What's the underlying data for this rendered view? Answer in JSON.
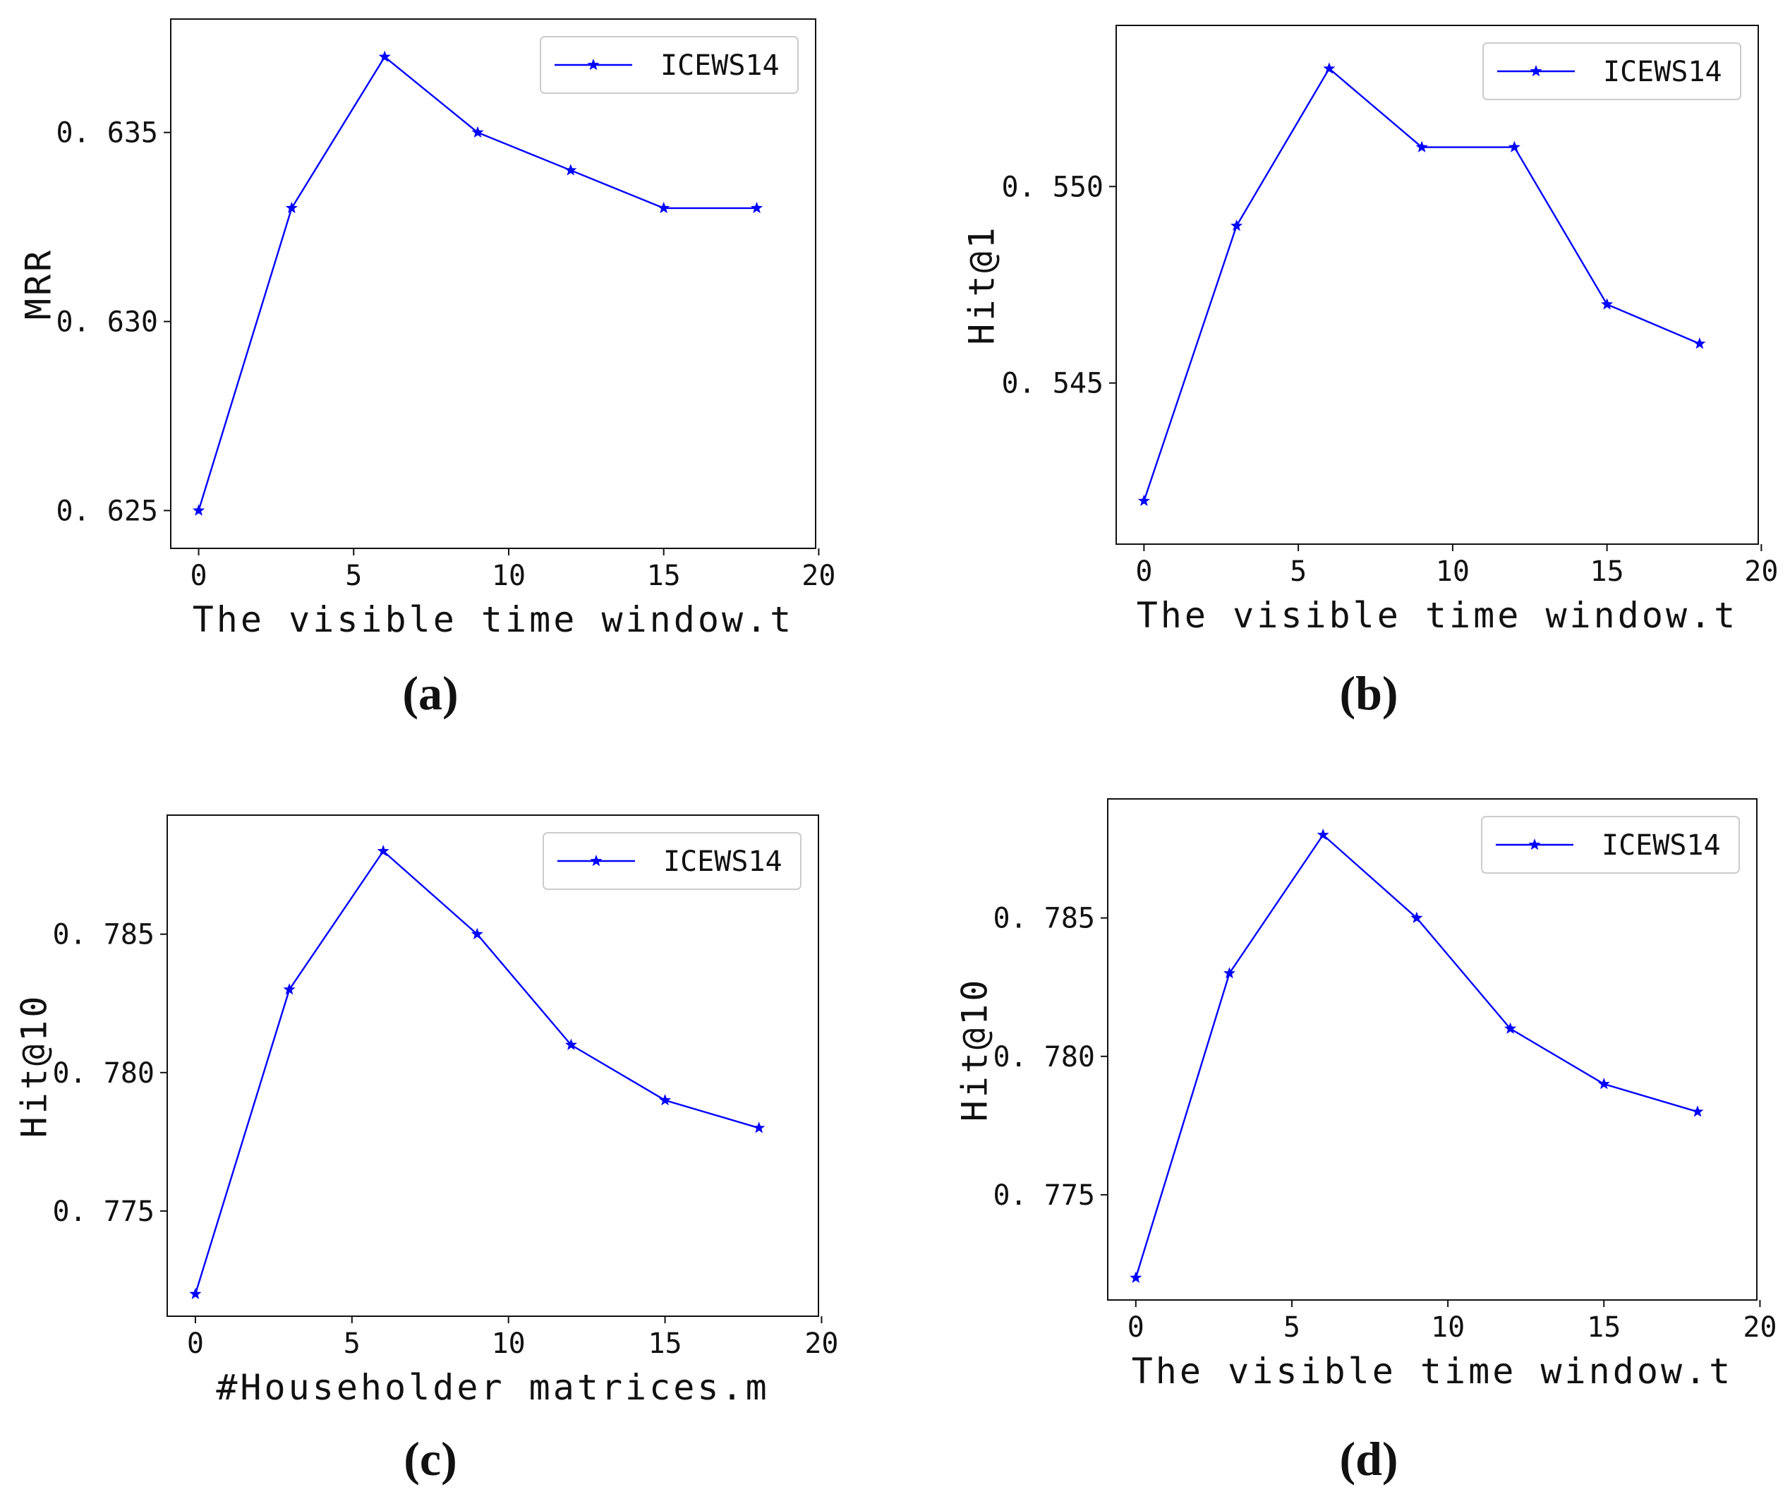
{
  "chart_data": [
    {
      "type": "line",
      "panel_label": "(a)",
      "xlabel": "The visible time window.t",
      "ylabel": "MRR",
      "xlim": [
        -0.9,
        19.9
      ],
      "ylim": [
        0.624,
        0.638
      ],
      "xticks": [
        0,
        5,
        10,
        15,
        20
      ],
      "yticks": [
        0.625,
        0.63,
        0.635
      ],
      "ytick_labels": [
        "0. 625",
        "0. 630",
        "0. 635"
      ],
      "legend_position": "upper right",
      "color": "#0000ff",
      "series": [
        {
          "name": "ICEWS14",
          "x": [
            0,
            3,
            6,
            9,
            12,
            15,
            18
          ],
          "y": [
            0.625,
            0.633,
            0.637,
            0.635,
            0.634,
            0.633,
            0.633
          ]
        }
      ]
    },
    {
      "type": "line",
      "panel_label": "(b)",
      "xlabel": "The visible time window.t",
      "ylabel": "Hit@1",
      "xlim": [
        -0.9,
        19.9
      ],
      "ylim": [
        0.5409,
        0.5541
      ],
      "xticks": [
        0,
        5,
        10,
        15,
        20
      ],
      "yticks": [
        0.545,
        0.55
      ],
      "ytick_labels": [
        "0. 545",
        "0. 550"
      ],
      "legend_position": "upper right",
      "color": "#0000ff",
      "series": [
        {
          "name": "ICEWS14",
          "x": [
            0,
            3,
            6,
            9,
            12,
            15,
            18
          ],
          "y": [
            0.542,
            0.549,
            0.553,
            0.551,
            0.551,
            0.547,
            0.546
          ]
        }
      ]
    },
    {
      "type": "line",
      "panel_label": "(c)",
      "xlabel": "#Householder matrices.m",
      "ylabel": "Hit@10",
      "xlim": [
        -0.9,
        19.9
      ],
      "ylim": [
        0.7712,
        0.7893
      ],
      "xticks": [
        0,
        5,
        10,
        15,
        20
      ],
      "yticks": [
        0.775,
        0.78,
        0.785
      ],
      "ytick_labels": [
        "0. 775",
        "0. 780",
        "0. 785"
      ],
      "legend_position": "upper right",
      "color": "#0000ff",
      "series": [
        {
          "name": "ICEWS14",
          "x": [
            0,
            3,
            6,
            9,
            12,
            15,
            18
          ],
          "y": [
            0.772,
            0.783,
            0.788,
            0.785,
            0.781,
            0.779,
            0.778
          ]
        }
      ]
    },
    {
      "type": "line",
      "panel_label": "(d)",
      "xlabel": "The visible time window.t",
      "ylabel": "Hit@10",
      "xlim": [
        -0.9,
        19.9
      ],
      "ylim": [
        0.7712,
        0.7893
      ],
      "xticks": [
        0,
        5,
        10,
        15,
        20
      ],
      "yticks": [
        0.775,
        0.78,
        0.785
      ],
      "ytick_labels": [
        "0. 775",
        "0. 780",
        "0. 785"
      ],
      "legend_position": "upper right",
      "color": "#0000ff",
      "series": [
        {
          "name": "ICEWS14",
          "x": [
            0,
            3,
            6,
            9,
            12,
            15,
            18
          ],
          "y": [
            0.772,
            0.783,
            0.788,
            0.785,
            0.781,
            0.779,
            0.778
          ]
        }
      ]
    }
  ]
}
